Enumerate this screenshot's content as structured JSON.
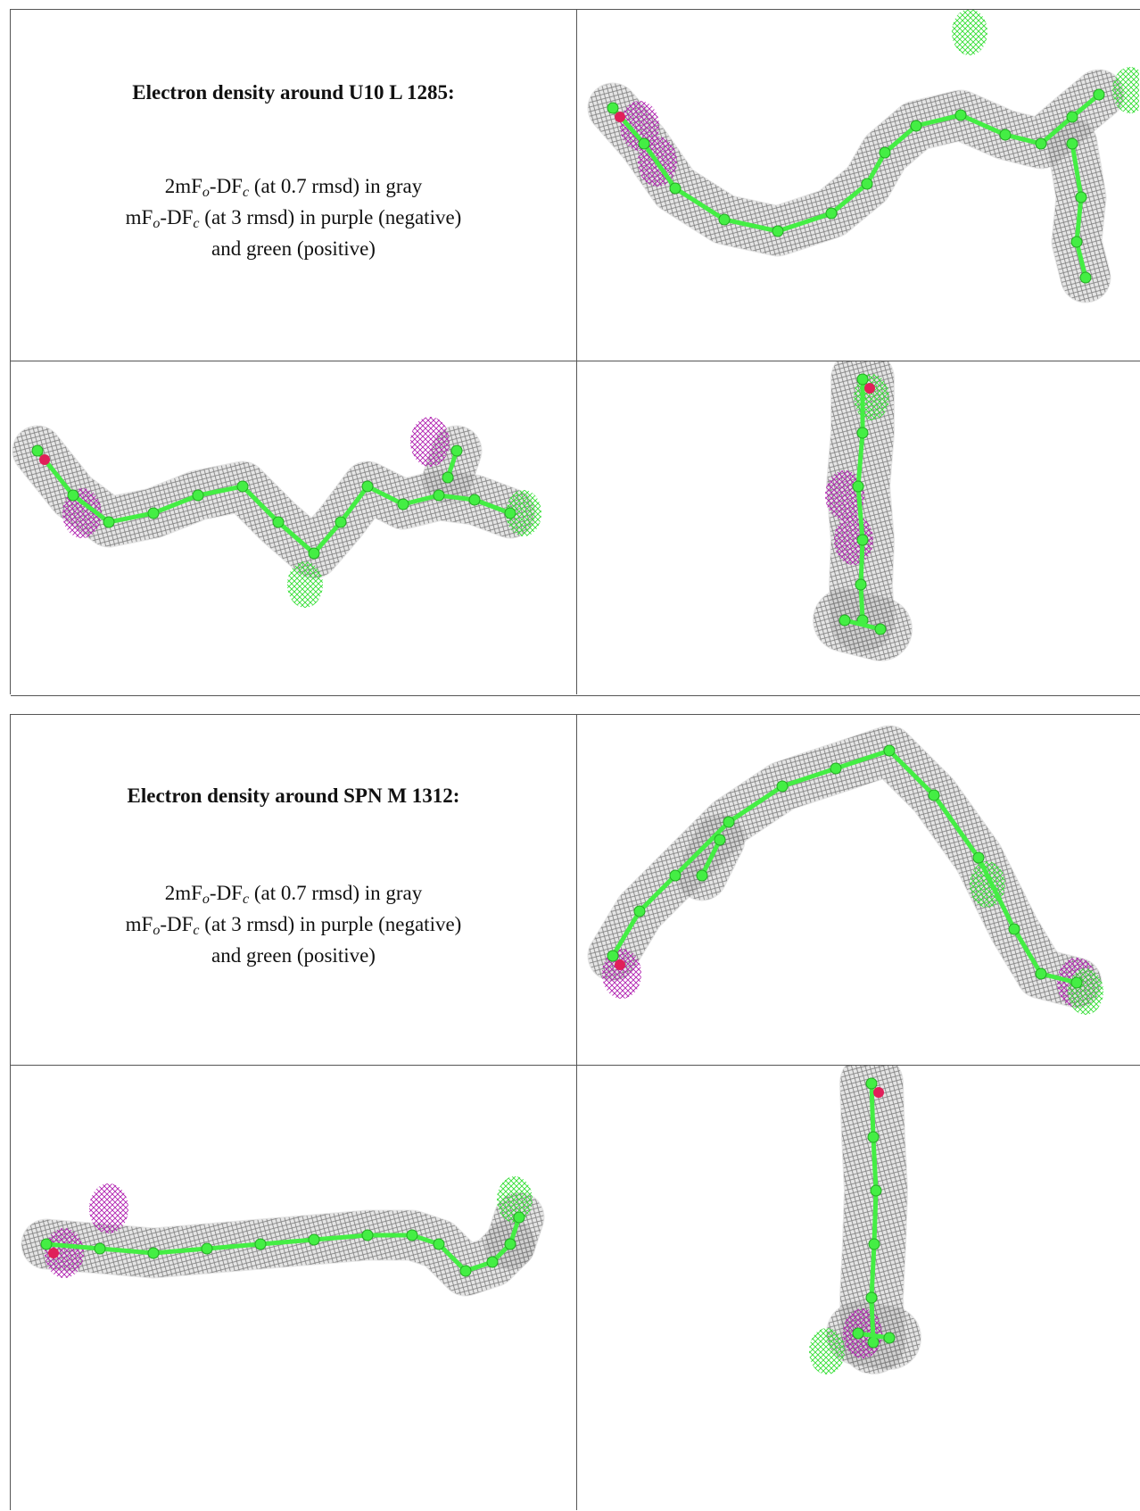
{
  "panels": [
    {
      "title": "Electron density around U10 L 1285:",
      "legend": [
        [
          "2mF",
          "o",
          "-DF",
          "c",
          " (at 0.7 rmsd) in gray"
        ],
        [
          "mF",
          "o",
          "-DF",
          "c",
          " (at 3 rmsd) in purple (negative)"
        ],
        [
          "and green (positive)"
        ]
      ]
    },
    {
      "title": "Electron density around SPN M 1312:",
      "legend": [
        [
          "2mF",
          "o",
          "-DF",
          "c",
          " (at 0.7 rmsd) in gray"
        ],
        [
          "mF",
          "o",
          "-DF",
          "c",
          " (at 3 rmsd) in purple (negative)"
        ],
        [
          "and green (positive)"
        ]
      ]
    }
  ]
}
